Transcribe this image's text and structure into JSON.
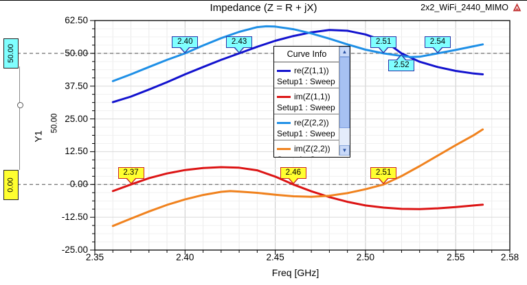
{
  "header": {
    "title": "Impedance (Z = R + jX)",
    "project": "2x2_WiFi_2440_MIMO"
  },
  "axes": {
    "y_title": "Y1",
    "x_title": "Freq [GHz]",
    "y_ticks": [
      "62.50",
      "50.00",
      "37.50",
      "25.00",
      "12.50",
      "0.00",
      "-12.50",
      "-25.00"
    ],
    "x_ticks": [
      "2.35",
      "2.40",
      "2.45",
      "2.50",
      "2.55",
      "2.58"
    ]
  },
  "rulers": {
    "upper_label": "50.00",
    "upper_value": 50,
    "lower_label": "0.00",
    "lower_value": 0,
    "delta_label": "50.00"
  },
  "legend": {
    "title": "Curve Info",
    "items": [
      {
        "name": "re(Z(1,1))",
        "setup": "Setup1 : Sweep",
        "color": "#1212CE"
      },
      {
        "name": "im(Z(1,1))",
        "setup": "Setup1 : Sweep",
        "color": "#DC1414"
      },
      {
        "name": "re(Z(2,2))",
        "setup": "Setup1 : Sweep",
        "color": "#1E8FE6"
      },
      {
        "name": "im(Z(2,2))",
        "setup": "Setup1 : Sweep",
        "color": "#F0821E"
      }
    ]
  },
  "icons": {
    "scroll_up": "▲",
    "scroll_down": "▼"
  },
  "markers": {
    "items": [
      {
        "label": "2.40",
        "freq": 2.4,
        "ruler": "upper",
        "dir": "down",
        "color": "cyan"
      },
      {
        "label": "2.43",
        "freq": 2.43,
        "ruler": "upper",
        "dir": "down",
        "color": "cyan"
      },
      {
        "label": "2.51",
        "freq": 2.51,
        "ruler": "upper",
        "dir": "down",
        "color": "cyan"
      },
      {
        "label": "2.52",
        "freq": 2.52,
        "ruler": "upper",
        "dir": "up",
        "color": "cyan"
      },
      {
        "label": "2.54",
        "freq": 2.54,
        "ruler": "upper",
        "dir": "down",
        "color": "cyan"
      },
      {
        "label": "2.37",
        "freq": 2.37,
        "ruler": "lower",
        "dir": "down",
        "color": "yellow"
      },
      {
        "label": "2.46",
        "freq": 2.46,
        "ruler": "lower",
        "dir": "down",
        "color": "yellow"
      },
      {
        "label": "2.51",
        "freq": 2.51,
        "ruler": "lower",
        "dir": "down",
        "color": "yellow"
      }
    ]
  },
  "chart_data": {
    "type": "line",
    "title": "Impedance (Z = R + jX)",
    "xlabel": "Freq [GHz]",
    "ylabel": "Y1",
    "xlim": [
      2.35,
      2.58
    ],
    "ylim": [
      -25,
      62.5
    ],
    "x_major_step": 0.05,
    "x_minor_step": 0.01,
    "y_major_step": 12.5,
    "y_minor_step": 3.125,
    "grid": true,
    "legend_position": "center",
    "reference_lines": [
      50,
      0
    ],
    "series": [
      {
        "name": "re(Z(1,1))",
        "setup": "Setup1 : Sweep",
        "color": "#1212CE",
        "points": [
          [
            2.36,
            31.4
          ],
          [
            2.37,
            33.5
          ],
          [
            2.38,
            36.2
          ],
          [
            2.39,
            39.0
          ],
          [
            2.4,
            42.0
          ],
          [
            2.41,
            44.8
          ],
          [
            2.42,
            47.5
          ],
          [
            2.43,
            50.0
          ],
          [
            2.44,
            52.5
          ],
          [
            2.45,
            54.8
          ],
          [
            2.46,
            56.6
          ],
          [
            2.47,
            58.0
          ],
          [
            2.48,
            58.9
          ],
          [
            2.49,
            58.6
          ],
          [
            2.5,
            57.2
          ],
          [
            2.51,
            54.8
          ],
          [
            2.515,
            52.5
          ],
          [
            2.52,
            50.0
          ],
          [
            2.53,
            46.8
          ],
          [
            2.54,
            44.8
          ],
          [
            2.55,
            43.3
          ],
          [
            2.56,
            42.3
          ],
          [
            2.565,
            42.0
          ]
        ]
      },
      {
        "name": "im(Z(1,1))",
        "setup": "Setup1 : Sweep",
        "color": "#DC1414",
        "points": [
          [
            2.36,
            -2.5
          ],
          [
            2.37,
            0.0
          ],
          [
            2.38,
            2.4
          ],
          [
            2.39,
            4.2
          ],
          [
            2.4,
            5.5
          ],
          [
            2.41,
            6.3
          ],
          [
            2.42,
            6.6
          ],
          [
            2.43,
            6.4
          ],
          [
            2.44,
            5.4
          ],
          [
            2.45,
            3.0
          ],
          [
            2.46,
            0.0
          ],
          [
            2.47,
            -2.6
          ],
          [
            2.48,
            -4.8
          ],
          [
            2.49,
            -6.6
          ],
          [
            2.5,
            -8.0
          ],
          [
            2.51,
            -8.8
          ],
          [
            2.52,
            -9.3
          ],
          [
            2.53,
            -9.4
          ],
          [
            2.54,
            -9.1
          ],
          [
            2.55,
            -8.6
          ],
          [
            2.56,
            -8.0
          ],
          [
            2.565,
            -7.7
          ]
        ]
      },
      {
        "name": "re(Z(2,2))",
        "setup": "Setup1 : Sweep",
        "color": "#1E8FE6",
        "points": [
          [
            2.36,
            39.4
          ],
          [
            2.37,
            42.0
          ],
          [
            2.38,
            44.8
          ],
          [
            2.39,
            47.5
          ],
          [
            2.4,
            50.0
          ],
          [
            2.41,
            53.0
          ],
          [
            2.42,
            55.8
          ],
          [
            2.43,
            58.2
          ],
          [
            2.44,
            60.0
          ],
          [
            2.445,
            60.3
          ],
          [
            2.45,
            60.2
          ],
          [
            2.46,
            59.2
          ],
          [
            2.47,
            57.6
          ],
          [
            2.48,
            55.6
          ],
          [
            2.49,
            53.4
          ],
          [
            2.5,
            51.4
          ],
          [
            2.51,
            50.0
          ],
          [
            2.52,
            49.0
          ],
          [
            2.525,
            48.6
          ],
          [
            2.53,
            48.7
          ],
          [
            2.54,
            50.0
          ],
          [
            2.55,
            51.3
          ],
          [
            2.56,
            52.7
          ],
          [
            2.565,
            53.4
          ]
        ]
      },
      {
        "name": "im(Z(2,2))",
        "setup": "Setup1 : Sweep",
        "color": "#F0821E",
        "points": [
          [
            2.36,
            -15.8
          ],
          [
            2.37,
            -13.0
          ],
          [
            2.38,
            -10.3
          ],
          [
            2.39,
            -7.8
          ],
          [
            2.4,
            -5.7
          ],
          [
            2.41,
            -4.0
          ],
          [
            2.42,
            -2.8
          ],
          [
            2.425,
            -2.5
          ],
          [
            2.43,
            -2.7
          ],
          [
            2.44,
            -3.2
          ],
          [
            2.45,
            -3.9
          ],
          [
            2.46,
            -4.5
          ],
          [
            2.47,
            -4.7
          ],
          [
            2.48,
            -4.3
          ],
          [
            2.49,
            -3.3
          ],
          [
            2.5,
            -1.8
          ],
          [
            2.51,
            0.0
          ],
          [
            2.52,
            3.2
          ],
          [
            2.53,
            7.0
          ],
          [
            2.54,
            11.0
          ],
          [
            2.55,
            15.0
          ],
          [
            2.56,
            18.8
          ],
          [
            2.565,
            21.0
          ]
        ]
      }
    ]
  }
}
